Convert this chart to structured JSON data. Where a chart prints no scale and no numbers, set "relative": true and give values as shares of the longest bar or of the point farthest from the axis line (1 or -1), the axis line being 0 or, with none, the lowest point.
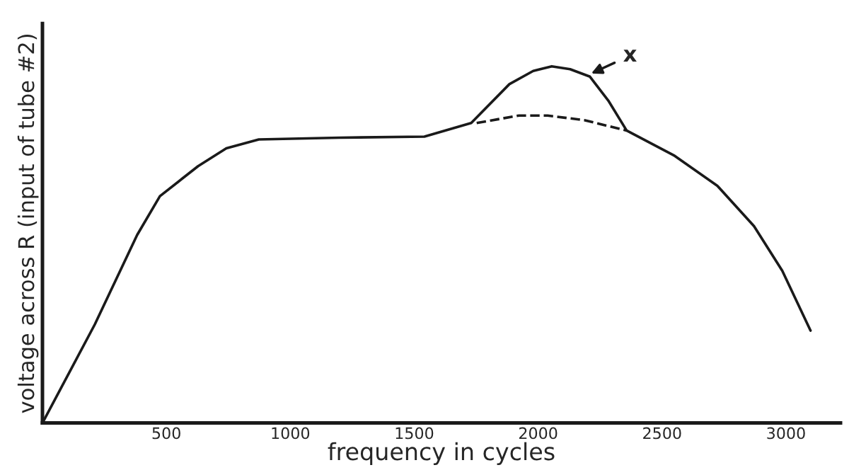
{
  "chart_data": {
    "type": "line",
    "relative": true,
    "xlabel": "frequency in cycles",
    "ylabel": "voltage across R (input of tube #2)",
    "xlim": [
      0,
      3220
    ],
    "xticks": [
      500,
      1000,
      1500,
      2000,
      2500,
      3000
    ],
    "marker": "none",
    "series": [
      {
        "color": "#1a1a1a",
        "line_style": "solid",
        "x": [
          0,
          211,
          382,
          474,
          628,
          742,
          873,
          1200,
          1541,
          1730,
          1884,
          1980,
          2055,
          2129,
          2209,
          2283,
          2357,
          2551,
          2723,
          2871,
          2985,
          3099
        ],
        "values": [
          0,
          0.276,
          0.527,
          0.636,
          0.72,
          0.77,
          0.795,
          0.8,
          0.803,
          0.841,
          0.95,
          0.987,
          1,
          0.992,
          0.971,
          0.904,
          0.82,
          0.749,
          0.665,
          0.552,
          0.427,
          0.259
        ]
      },
      {
        "color": "#1a1a1a",
        "line_style": "dashed",
        "x": [
          1752,
          1923,
          2038,
          2186,
          2357
        ],
        "values": [
          0.841,
          0.862,
          0.862,
          0.849,
          0.82
        ]
      }
    ],
    "annotations": [
      {
        "text": "x",
        "x": 2200,
        "y": 0.975
      }
    ]
  }
}
